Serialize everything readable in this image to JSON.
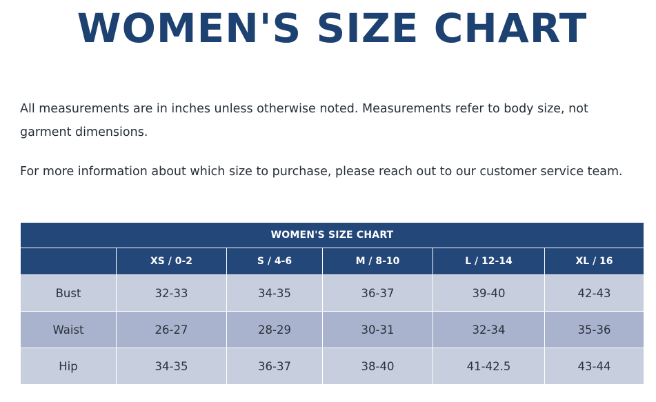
{
  "title": "WOMEN'S SIZE CHART",
  "intro": {
    "paragraph1": "All measurements are in inches unless otherwise noted. Measurements refer to body size, not garment dimensions.",
    "paragraph2": "For more information about which size to purchase, please reach out to our customer service team."
  },
  "table": {
    "caption": "WOMEN'S SIZE CHART",
    "corner": "",
    "columns": [
      "XS / 0-2",
      "S / 4-6",
      "M / 8-10",
      "L / 12-14",
      "XL / 16"
    ],
    "rows": [
      {
        "label": "Bust",
        "values": [
          "32-33",
          "34-35",
          "36-37",
          "39-40",
          "42-43"
        ]
      },
      {
        "label": "Waist",
        "values": [
          "26-27",
          "28-29",
          "30-31",
          "32-34",
          "35-36"
        ]
      },
      {
        "label": "Hip",
        "values": [
          "34-35",
          "36-37",
          "38-40",
          "41-42.5",
          "43-44"
        ]
      }
    ]
  },
  "colors": {
    "title": "#1d4170",
    "header_bg": "#24477a",
    "row_light": "#c7cedd",
    "row_dark": "#aab3cd"
  }
}
